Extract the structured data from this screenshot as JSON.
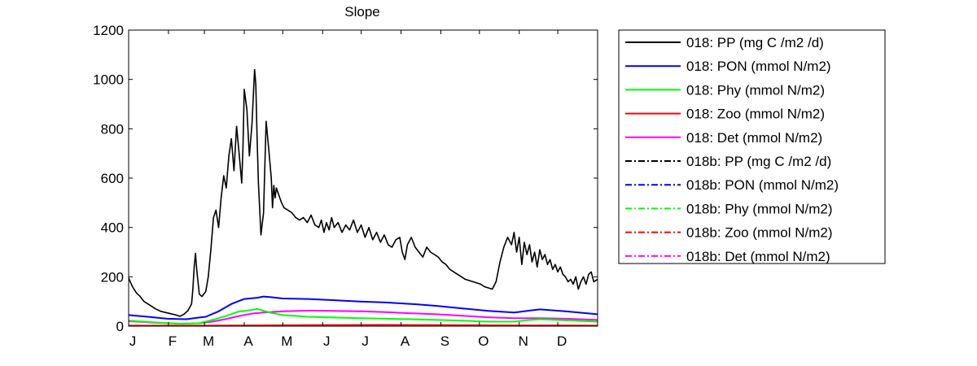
{
  "chart_data": {
    "type": "line",
    "title": "Slope",
    "xlabel": "",
    "ylabel": "",
    "xlim": [
      0,
      365
    ],
    "ylim": [
      0,
      1200
    ],
    "yticks": [
      0,
      200,
      400,
      600,
      800,
      1000,
      1200
    ],
    "x_tick_labels": [
      {
        "label": "J",
        "day": 0
      },
      {
        "label": "F",
        "day": 31
      },
      {
        "label": "M",
        "day": 59
      },
      {
        "label": "A",
        "day": 90
      },
      {
        "label": "M",
        "day": 120
      },
      {
        "label": "J",
        "day": 151
      },
      {
        "label": "J",
        "day": 181
      },
      {
        "label": "A",
        "day": 212
      },
      {
        "label": "S",
        "day": 243
      },
      {
        "label": "O",
        "day": 273
      },
      {
        "label": "N",
        "day": 304
      },
      {
        "label": "D",
        "day": 334
      }
    ],
    "grid": false,
    "legend_position": "outside-right",
    "series": [
      {
        "name": "018: PP (mg C /m2 /d)",
        "color": "#000000",
        "style": "solid",
        "x": [
          0,
          3,
          6,
          9,
          12,
          15,
          18,
          21,
          25,
          29,
          33,
          37,
          40,
          43,
          46,
          49,
          50,
          51,
          52,
          53,
          55,
          57,
          60,
          62,
          64,
          66,
          68,
          70,
          72,
          74,
          76,
          78,
          80,
          82,
          84,
          86,
          88,
          89,
          90,
          92,
          94,
          96,
          98,
          99,
          100,
          101,
          103,
          105,
          106,
          107,
          109,
          111,
          112,
          113,
          114,
          115,
          117,
          119,
          121,
          124,
          127,
          130,
          133,
          136,
          139,
          142,
          145,
          148,
          150,
          152,
          154,
          156,
          158,
          160,
          163,
          166,
          169,
          172,
          175,
          178,
          181,
          184,
          187,
          190,
          193,
          196,
          199,
          202,
          205,
          208,
          211,
          213,
          215,
          217,
          220,
          223,
          226,
          229,
          232,
          235,
          238,
          241,
          244,
          247,
          250,
          253,
          256,
          259,
          262,
          265,
          268,
          271,
          274,
          277,
          280,
          283,
          286,
          289,
          292,
          295,
          298,
          300,
          302,
          304,
          306,
          308,
          310,
          312,
          314,
          316,
          318,
          320,
          322,
          324,
          326,
          328,
          330,
          332,
          334,
          336,
          338,
          340,
          342,
          344,
          346,
          348,
          350,
          352,
          354,
          356,
          358,
          360,
          362,
          365
        ],
        "y": [
          195,
          160,
          135,
          120,
          100,
          90,
          80,
          70,
          60,
          55,
          50,
          45,
          40,
          48,
          62,
          90,
          150,
          240,
          295,
          230,
          130,
          120,
          140,
          200,
          310,
          440,
          470,
          400,
          520,
          610,
          560,
          690,
          760,
          630,
          810,
          700,
          580,
          720,
          960,
          880,
          690,
          820,
          1040,
          980,
          760,
          580,
          370,
          460,
          650,
          830,
          720,
          600,
          480,
          570,
          520,
          560,
          530,
          500,
          480,
          470,
          460,
          440,
          430,
          440,
          420,
          450,
          410,
          400,
          430,
          380,
          420,
          390,
          440,
          400,
          420,
          380,
          410,
          390,
          430,
          380,
          410,
          360,
          400,
          350,
          380,
          340,
          370,
          330,
          320,
          350,
          360,
          300,
          270,
          330,
          360,
          320,
          300,
          280,
          320,
          300,
          290,
          280,
          260,
          250,
          230,
          220,
          210,
          200,
          190,
          185,
          180,
          175,
          170,
          160,
          155,
          150,
          180,
          260,
          320,
          360,
          330,
          380,
          300,
          360,
          250,
          340,
          290,
          330,
          260,
          300,
          240,
          310,
          270,
          290,
          250,
          270,
          230,
          250,
          220,
          240,
          210,
          200,
          180,
          190,
          170,
          200,
          150,
          180,
          200,
          170,
          210,
          220,
          180,
          190
        ]
      },
      {
        "name": "018: PON (mmol N/m2)",
        "color": "#0000ff",
        "style": "solid",
        "x": [
          0,
          15,
          30,
          45,
          55,
          60,
          70,
          80,
          90,
          100,
          105,
          110,
          120,
          140,
          160,
          180,
          200,
          220,
          240,
          260,
          280,
          300,
          310,
          320,
          340,
          365
        ],
        "y": [
          45,
          38,
          30,
          28,
          35,
          38,
          60,
          90,
          110,
          115,
          120,
          118,
          112,
          110,
          105,
          100,
          96,
          90,
          82,
          72,
          62,
          55,
          62,
          68,
          60,
          48
        ]
      },
      {
        "name": "018: Phy (mmol N/m2)",
        "color": "#00ff00",
        "style": "solid",
        "x": [
          0,
          20,
          40,
          55,
          65,
          75,
          85,
          95,
          100,
          110,
          120,
          140,
          160,
          180,
          200,
          220,
          240,
          260,
          280,
          300,
          310,
          320,
          340,
          365
        ],
        "y": [
          22,
          15,
          10,
          12,
          25,
          40,
          58,
          65,
          70,
          55,
          45,
          38,
          35,
          32,
          30,
          28,
          25,
          22,
          18,
          18,
          24,
          28,
          24,
          18
        ]
      },
      {
        "name": "018: Zoo (mmol N/m2)",
        "color": "#ff0000",
        "style": "solid",
        "x": [
          0,
          60,
          100,
          140,
          200,
          260,
          300,
          340,
          365
        ],
        "y": [
          2,
          2,
          3,
          4,
          5,
          4,
          3,
          3,
          2
        ]
      },
      {
        "name": "018: Det (mmol N/m2)",
        "color": "#ff00ff",
        "style": "solid",
        "x": [
          0,
          20,
          40,
          55,
          65,
          75,
          85,
          95,
          105,
          120,
          140,
          160,
          180,
          200,
          220,
          240,
          260,
          280,
          300,
          320,
          340,
          365
        ],
        "y": [
          20,
          14,
          10,
          12,
          18,
          28,
          40,
          50,
          55,
          60,
          63,
          62,
          60,
          57,
          52,
          48,
          42,
          36,
          32,
          32,
          30,
          25
        ]
      },
      {
        "name": "018b: PP (mg C /m2 /d)",
        "color": "#000000",
        "style": "dashdot",
        "x": [],
        "y": []
      },
      {
        "name": "018b: PON (mmol N/m2)",
        "color": "#0000ff",
        "style": "dashdot",
        "x": [],
        "y": []
      },
      {
        "name": "018b: Phy (mmol N/m2)",
        "color": "#00ff00",
        "style": "dashdot",
        "x": [],
        "y": []
      },
      {
        "name": "018b: Zoo (mmol N/m2)",
        "color": "#ff0000",
        "style": "dashdot",
        "x": [],
        "y": []
      },
      {
        "name": "018b: Det (mmol N/m2)",
        "color": "#ff00ff",
        "style": "dashdot",
        "x": [],
        "y": []
      }
    ]
  }
}
